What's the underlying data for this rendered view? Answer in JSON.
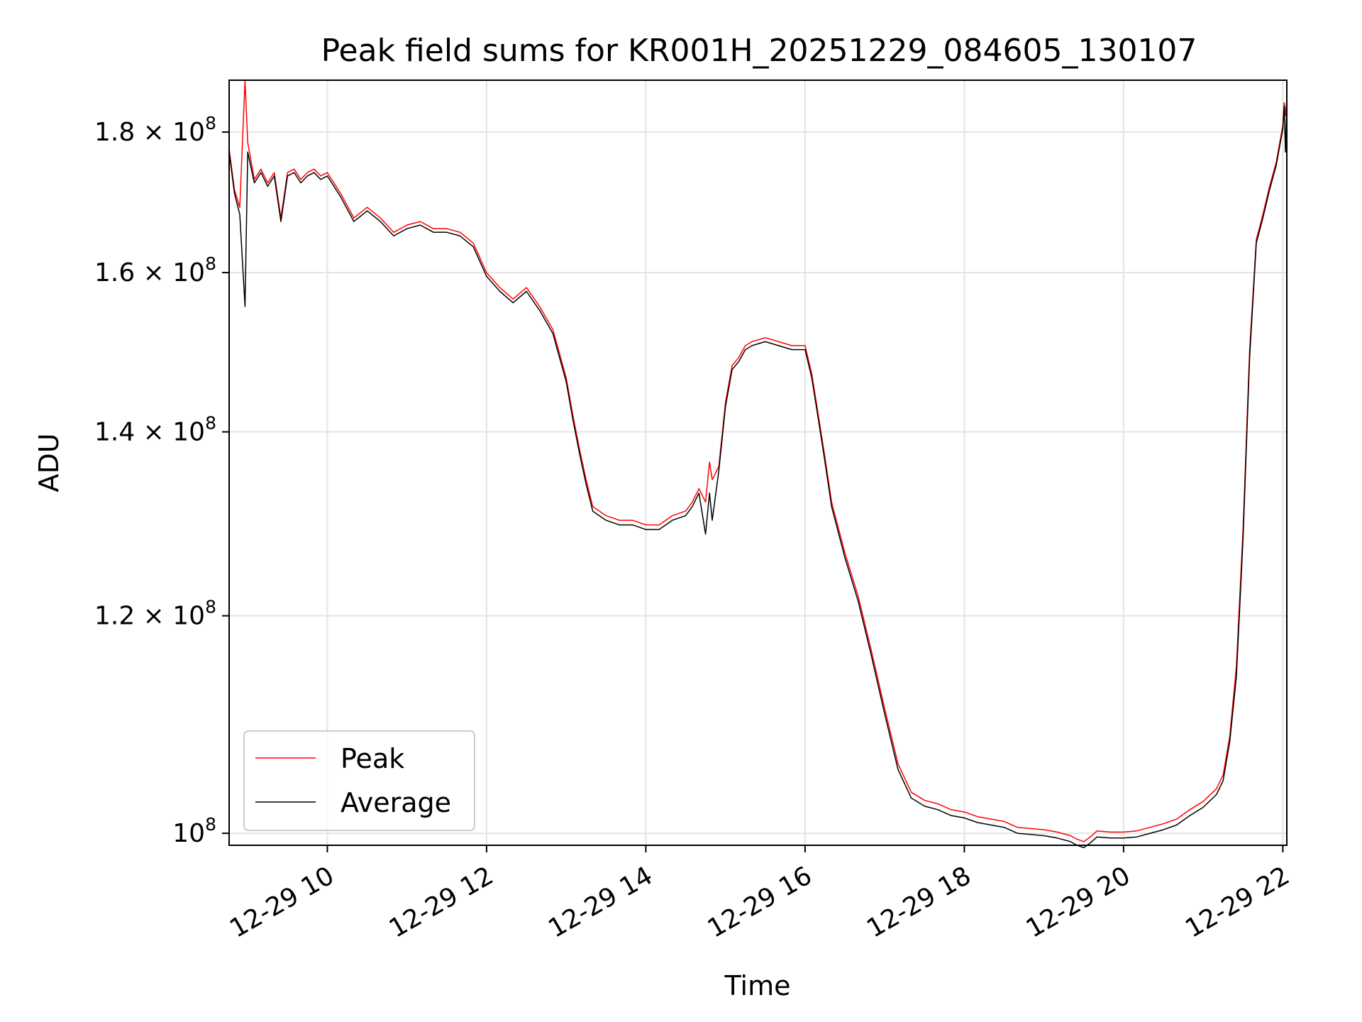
{
  "chart_data": {
    "type": "line",
    "title": "Peak field sums for KR001H_20251229_084605_130107",
    "xlabel": "Time",
    "ylabel": "ADU",
    "yscale": "log",
    "xlim": [
      "2025-12-29 08:46",
      "2025-12-29 22:03"
    ],
    "ylim": [
      99000000,
      188000000
    ],
    "x_ticks": [
      {
        "value": "2025-12-29 10:00",
        "label": "12-29 10"
      },
      {
        "value": "2025-12-29 12:00",
        "label": "12-29 12"
      },
      {
        "value": "2025-12-29 14:00",
        "label": "12-29 14"
      },
      {
        "value": "2025-12-29 16:00",
        "label": "12-29 16"
      },
      {
        "value": "2025-12-29 18:00",
        "label": "12-29 18"
      },
      {
        "value": "2025-12-29 20:00",
        "label": "12-29 20"
      },
      {
        "value": "2025-12-29 22:00",
        "label": "12-29 22"
      }
    ],
    "y_ticks": [
      {
        "value": 100000000,
        "mantissa": "10",
        "exponent": "8"
      },
      {
        "value": 120000000,
        "mantissa": "1.2 × 10",
        "exponent": "8"
      },
      {
        "value": 140000000,
        "mantissa": "1.4 × 10",
        "exponent": "8"
      },
      {
        "value": 160000000,
        "mantissa": "1.6 × 10",
        "exponent": "8"
      },
      {
        "value": 180000000,
        "mantissa": "1.8 × 10",
        "exponent": "8"
      }
    ],
    "grid": true,
    "legend_position": "lower-left",
    "x": [
      "2025-12-29 08:46",
      "2025-12-29 08:50",
      "2025-12-29 08:54",
      "2025-12-29 08:58",
      "2025-12-29 09:00",
      "2025-12-29 09:05",
      "2025-12-29 09:10",
      "2025-12-29 09:15",
      "2025-12-29 09:20",
      "2025-12-29 09:25",
      "2025-12-29 09:30",
      "2025-12-29 09:35",
      "2025-12-29 09:40",
      "2025-12-29 09:45",
      "2025-12-29 09:50",
      "2025-12-29 09:55",
      "2025-12-29 10:00",
      "2025-12-29 10:10",
      "2025-12-29 10:20",
      "2025-12-29 10:30",
      "2025-12-29 10:40",
      "2025-12-29 10:50",
      "2025-12-29 11:00",
      "2025-12-29 11:10",
      "2025-12-29 11:20",
      "2025-12-29 11:30",
      "2025-12-29 11:40",
      "2025-12-29 11:50",
      "2025-12-29 12:00",
      "2025-12-29 12:10",
      "2025-12-29 12:20",
      "2025-12-29 12:30",
      "2025-12-29 12:40",
      "2025-12-29 12:50",
      "2025-12-29 13:00",
      "2025-12-29 13:05",
      "2025-12-29 13:10",
      "2025-12-29 13:15",
      "2025-12-29 13:20",
      "2025-12-29 13:30",
      "2025-12-29 13:40",
      "2025-12-29 13:50",
      "2025-12-29 14:00",
      "2025-12-29 14:10",
      "2025-12-29 14:20",
      "2025-12-29 14:30",
      "2025-12-29 14:35",
      "2025-12-29 14:40",
      "2025-12-29 14:45",
      "2025-12-29 14:48",
      "2025-12-29 14:50",
      "2025-12-29 14:55",
      "2025-12-29 15:00",
      "2025-12-29 15:05",
      "2025-12-29 15:10",
      "2025-12-29 15:15",
      "2025-12-29 15:20",
      "2025-12-29 15:30",
      "2025-12-29 15:40",
      "2025-12-29 15:50",
      "2025-12-29 16:00",
      "2025-12-29 16:05",
      "2025-12-29 16:10",
      "2025-12-29 16:15",
      "2025-12-29 16:20",
      "2025-12-29 16:30",
      "2025-12-29 16:40",
      "2025-12-29 16:50",
      "2025-12-29 17:00",
      "2025-12-29 17:10",
      "2025-12-29 17:20",
      "2025-12-29 17:30",
      "2025-12-29 17:40",
      "2025-12-29 17:50",
      "2025-12-29 18:00",
      "2025-12-29 18:10",
      "2025-12-29 18:20",
      "2025-12-29 18:30",
      "2025-12-29 18:40",
      "2025-12-29 18:50",
      "2025-12-29 19:00",
      "2025-12-29 19:10",
      "2025-12-29 19:20",
      "2025-12-29 19:25",
      "2025-12-29 19:30",
      "2025-12-29 19:35",
      "2025-12-29 19:40",
      "2025-12-29 19:50",
      "2025-12-29 20:00",
      "2025-12-29 20:10",
      "2025-12-29 20:20",
      "2025-12-29 20:30",
      "2025-12-29 20:40",
      "2025-12-29 20:50",
      "2025-12-29 21:00",
      "2025-12-29 21:10",
      "2025-12-29 21:15",
      "2025-12-29 21:20",
      "2025-12-29 21:25",
      "2025-12-29 21:30",
      "2025-12-29 21:35",
      "2025-12-29 21:40",
      "2025-12-29 21:45",
      "2025-12-29 21:50",
      "2025-12-29 21:55",
      "2025-12-29 22:00",
      "2025-12-29 22:01",
      "2025-12-29 22:02",
      "2025-12-29 22:03"
    ],
    "series": [
      {
        "name": "Peak",
        "color": "#ff0000",
        "values": [
          177500000,
          171500000,
          169000000,
          188000000,
          178500000,
          173000000,
          174500000,
          172500000,
          174000000,
          167500000,
          174000000,
          174500000,
          173000000,
          174000000,
          174500000,
          173500000,
          174000000,
          171000000,
          167500000,
          169000000,
          167500000,
          165500000,
          166500000,
          167000000,
          166000000,
          166000000,
          165500000,
          164000000,
          160000000,
          158000000,
          156500000,
          158000000,
          155500000,
          152500000,
          146500000,
          142000000,
          138000000,
          134500000,
          131500000,
          130500000,
          130000000,
          130000000,
          129500000,
          129500000,
          130500000,
          131000000,
          132000000,
          133500000,
          132000000,
          136500000,
          134500000,
          136000000,
          143500000,
          148000000,
          149000000,
          150500000,
          151000000,
          151500000,
          151000000,
          150500000,
          150500000,
          147000000,
          142000000,
          137000000,
          132000000,
          126500000,
          122000000,
          116500000,
          111000000,
          106000000,
          103500000,
          102800000,
          102500000,
          102000000,
          101800000,
          101400000,
          101200000,
          101000000,
          100500000,
          100400000,
          100300000,
          100100000,
          99800000,
          99500000,
          99300000,
          99700000,
          100200000,
          100100000,
          100100000,
          100200000,
          100500000,
          100800000,
          101200000,
          102000000,
          102700000,
          103800000,
          105000000,
          108500000,
          115000000,
          129000000,
          150000000,
          164500000,
          168000000,
          172000000,
          175500000,
          181000000,
          184500000,
          182500000,
          185000000
        ]
      },
      {
        "name": "Average",
        "color": "#000000",
        "values": [
          177000000,
          171000000,
          168000000,
          155500000,
          177000000,
          172500000,
          174000000,
          172000000,
          173500000,
          167000000,
          173500000,
          174000000,
          172500000,
          173500000,
          174000000,
          173000000,
          173500000,
          170500000,
          167000000,
          168500000,
          167000000,
          165000000,
          166000000,
          166500000,
          165500000,
          165500000,
          165000000,
          163500000,
          159500000,
          157500000,
          156000000,
          157500000,
          155000000,
          152000000,
          146000000,
          141500000,
          137500000,
          134000000,
          131000000,
          130000000,
          129500000,
          129500000,
          129000000,
          129000000,
          130000000,
          130500000,
          131500000,
          133000000,
          128500000,
          133000000,
          130000000,
          135500000,
          143000000,
          147500000,
          148500000,
          150000000,
          150500000,
          151000000,
          150500000,
          150000000,
          150000000,
          146500000,
          141500000,
          136500000,
          131500000,
          126000000,
          121500000,
          116000000,
          110500000,
          105500000,
          103000000,
          102300000,
          102000000,
          101500000,
          101300000,
          100900000,
          100700000,
          100500000,
          100000000,
          99900000,
          99800000,
          99600000,
          99300000,
          99000000,
          98800000,
          99200000,
          99700000,
          99600000,
          99600000,
          99700000,
          100000000,
          100300000,
          100700000,
          101500000,
          102200000,
          103300000,
          104500000,
          108000000,
          114000000,
          128000000,
          149000000,
          164000000,
          167500000,
          171500000,
          175000000,
          180500000,
          184000000,
          177000000,
          184500000
        ]
      }
    ]
  }
}
